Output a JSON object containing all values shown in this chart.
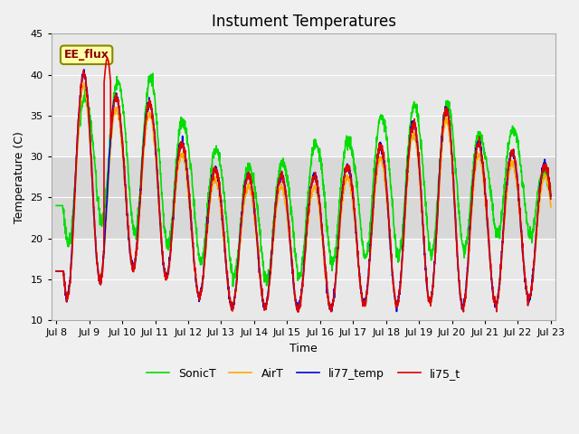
{
  "title": "Instument Temperatures",
  "xlabel": "Time",
  "ylabel": "Temperature (C)",
  "ylim": [
    10,
    45
  ],
  "xlim_days": [
    -0.15,
    15.15
  ],
  "yticks": [
    10,
    15,
    20,
    25,
    30,
    35,
    40,
    45
  ],
  "xtick_labels": [
    "Jul 8",
    "Jul 9",
    "Jul 10",
    "Jul 11",
    "Jul 12",
    "Jul 13",
    "Jul 14",
    "Jul 15",
    "Jul 16",
    "Jul 17",
    "Jul 18",
    "Jul 19",
    "Jul 20",
    "Jul 21",
    "Jul 22",
    "Jul 23"
  ],
  "xtick_positions": [
    0,
    1,
    2,
    3,
    4,
    5,
    6,
    7,
    8,
    9,
    10,
    11,
    12,
    13,
    14,
    15
  ],
  "shaded_band": [
    20,
    30
  ],
  "annotation_text": "EE_flux",
  "colors": {
    "li75_t": "#dd0000",
    "li77_temp": "#0000dd",
    "SonicT": "#00dd00",
    "AirT": "#ffaa00"
  },
  "background_color": "#f0f0f0",
  "plot_bg": "#e8e8e8",
  "shaded_bg": "#dcdcdc",
  "line_width": 1.2,
  "title_fontsize": 12,
  "label_fontsize": 9,
  "tick_fontsize": 8
}
